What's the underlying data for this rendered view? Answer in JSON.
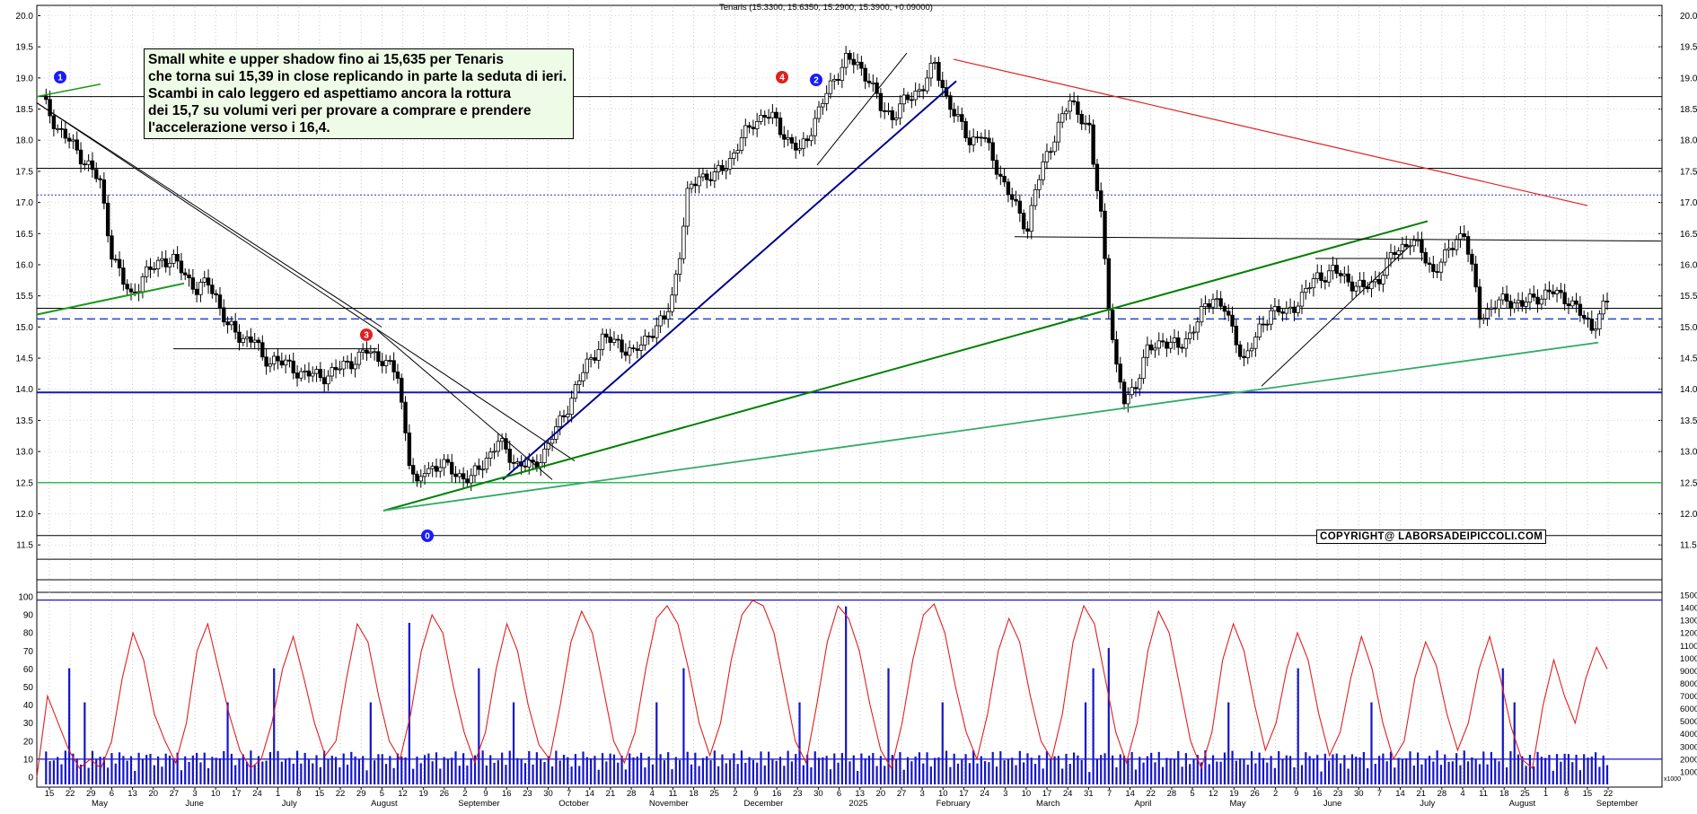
{
  "chart_data": {
    "type": "candlestick",
    "title": "Tenaris (15.3300, 15.6350, 15.2900, 15.3900, +0.09000)",
    "price_axis": {
      "ticks": [
        "20.0",
        "19.5",
        "19.0",
        "18.5",
        "18.0",
        "17.5",
        "17.0",
        "16.5",
        "16.0",
        "15.5",
        "15.0",
        "14.5",
        "14.0",
        "13.5",
        "13.0",
        "12.5",
        "12.0",
        "11.5"
      ],
      "range": [
        11.25,
        20.1
      ]
    },
    "indicator_left_axis": {
      "ticks": [
        "100",
        "90",
        "80",
        "70",
        "60",
        "50",
        "40",
        "30",
        "20",
        "10",
        "0"
      ]
    },
    "volume_axis": {
      "ticks": [
        "15000",
        "14000",
        "13000",
        "12000",
        "11000",
        "10000",
        "9000",
        "8000",
        "7000",
        "6000",
        "5000",
        "4000",
        "3000",
        "2000",
        "1000"
      ],
      "multiplier_label": "x1000"
    },
    "x_axis": {
      "day_ticks": [
        "15",
        "22",
        "29",
        "6",
        "13",
        "20",
        "27",
        "3",
        "10",
        "17",
        "24",
        "1",
        "8",
        "15",
        "22",
        "29",
        "5",
        "12",
        "19",
        "26",
        "2",
        "9",
        "16",
        "23",
        "30",
        "7",
        "14",
        "21",
        "28",
        "4",
        "11",
        "18",
        "25",
        "2",
        "9",
        "16",
        "23",
        "30",
        "6",
        "13",
        "20",
        "27",
        "3",
        "10",
        "17",
        "24",
        "3",
        "10",
        "17",
        "24",
        "31",
        "7",
        "14",
        "22",
        "28",
        "5",
        "12",
        "19",
        "26",
        "2",
        "9",
        "16",
        "23",
        "30",
        "7",
        "14",
        "21",
        "28",
        "4",
        "11",
        "18",
        "25",
        "1",
        "8",
        "15",
        "22"
      ],
      "month_labels": [
        "May",
        "June",
        "July",
        "August",
        "September",
        "October",
        "November",
        "December",
        "2025",
        "February",
        "March",
        "April",
        "May",
        "June",
        "July",
        "August",
        "September"
      ]
    },
    "horizontal_levels": [
      18.7,
      17.55,
      17.12,
      15.3,
      15.13,
      13.95,
      12.5,
      11.65,
      11.27
    ],
    "annotations": [
      {
        "label": "1",
        "color": "#1a1aff"
      },
      {
        "label": "2",
        "color": "#1a1aff"
      },
      {
        "label": "3",
        "color": "#e02020"
      },
      {
        "label": "4",
        "color": "#e02020"
      },
      {
        "label": "0",
        "color": "#1a1aff"
      }
    ],
    "note_lines": [
      "Small white e upper shadow fino ai 15,635 per Tenaris",
      "che torna sui 15,39 in close replicando in parte la seduta di ieri.",
      "Scambi in calo leggero ed aspettiamo ancora la rottura",
      "dei 15,7 su volumi veri per provare a comprare e prendere",
      "l'accelerazione verso i 16,4."
    ],
    "copyright": "COPYRIGHT@ LABORSADEIPICCOLI.COM",
    "price_path": [
      [
        0,
        18.65
      ],
      [
        4,
        18.2
      ],
      [
        8,
        17.9
      ],
      [
        12,
        17.6
      ],
      [
        15,
        17.3
      ],
      [
        18,
        16.2
      ],
      [
        21,
        15.7
      ],
      [
        23,
        15.5
      ],
      [
        26,
        15.8
      ],
      [
        28,
        15.9
      ],
      [
        31,
        16.1
      ],
      [
        34,
        16.05
      ],
      [
        37,
        15.85
      ],
      [
        40,
        15.6
      ],
      [
        43,
        15.7
      ],
      [
        45,
        15.5
      ],
      [
        48,
        15.0
      ],
      [
        51,
        14.85
      ],
      [
        55,
        14.8
      ],
      [
        57,
        14.45
      ],
      [
        60,
        14.5
      ],
      [
        64,
        14.35
      ],
      [
        68,
        14.25
      ],
      [
        72,
        14.2
      ],
      [
        76,
        14.3
      ],
      [
        80,
        14.45
      ],
      [
        84,
        14.6
      ],
      [
        88,
        14.5
      ],
      [
        92,
        14.2
      ],
      [
        93,
        13.75
      ],
      [
        95,
        12.9
      ],
      [
        97,
        12.4
      ],
      [
        99,
        12.7
      ],
      [
        103,
        12.8
      ],
      [
        107,
        12.65
      ],
      [
        111,
        12.55
      ],
      [
        115,
        12.9
      ],
      [
        118,
        13.15
      ],
      [
        120,
        13.0
      ],
      [
        123,
        12.8
      ],
      [
        127,
        12.75
      ],
      [
        131,
        13.1
      ],
      [
        135,
        13.6
      ],
      [
        138,
        14.0
      ],
      [
        141,
        14.4
      ],
      [
        145,
        14.8
      ],
      [
        149,
        14.75
      ],
      [
        153,
        14.55
      ],
      [
        157,
        14.9
      ],
      [
        161,
        15.1
      ],
      [
        163,
        15.5
      ],
      [
        165,
        16.2
      ],
      [
        167,
        17.1
      ],
      [
        170,
        17.45
      ],
      [
        174,
        17.4
      ],
      [
        178,
        17.7
      ],
      [
        181,
        18.0
      ],
      [
        184,
        18.3
      ],
      [
        187,
        18.4
      ],
      [
        190,
        18.3
      ],
      [
        193,
        18.0
      ],
      [
        196,
        17.8
      ],
      [
        199,
        18.2
      ],
      [
        202,
        18.6
      ],
      [
        205,
        19.0
      ],
      [
        208,
        19.3
      ],
      [
        211,
        19.2
      ],
      [
        214,
        19.0
      ],
      [
        217,
        18.5
      ],
      [
        220,
        18.4
      ],
      [
        223,
        18.6
      ],
      [
        225,
        18.7
      ],
      [
        228,
        18.9
      ],
      [
        231,
        19.2
      ],
      [
        234,
        18.7
      ],
      [
        237,
        18.3
      ],
      [
        240,
        18.0
      ],
      [
        243,
        18.1
      ],
      [
        246,
        17.7
      ],
      [
        249,
        17.3
      ],
      [
        252,
        16.9
      ],
      [
        255,
        16.6
      ],
      [
        257,
        17.2
      ],
      [
        260,
        17.75
      ],
      [
        263,
        18.25
      ],
      [
        266,
        18.6
      ],
      [
        269,
        18.4
      ],
      [
        271,
        18.15
      ],
      [
        272,
        17.6
      ],
      [
        274,
        16.8
      ],
      [
        276,
        15.4
      ],
      [
        278,
        14.3
      ],
      [
        280,
        13.8
      ],
      [
        283,
        14.1
      ],
      [
        286,
        14.6
      ],
      [
        290,
        14.8
      ],
      [
        294,
        14.65
      ],
      [
        297,
        14.9
      ],
      [
        300,
        15.2
      ],
      [
        303,
        15.5
      ],
      [
        306,
        15.3
      ],
      [
        308,
        14.9
      ],
      [
        311,
        14.5
      ],
      [
        314,
        14.8
      ],
      [
        318,
        15.3
      ],
      [
        322,
        15.2
      ],
      [
        326,
        15.5
      ],
      [
        330,
        15.8
      ],
      [
        334,
        15.9
      ],
      [
        338,
        15.75
      ],
      [
        342,
        15.6
      ],
      [
        346,
        15.8
      ],
      [
        350,
        16.2
      ],
      [
        354,
        16.4
      ],
      [
        357,
        16.2
      ],
      [
        360,
        15.9
      ],
      [
        363,
        16.1
      ],
      [
        366,
        16.45
      ],
      [
        368,
        16.5
      ],
      [
        370,
        15.9
      ],
      [
        372,
        15.2
      ],
      [
        375,
        15.3
      ],
      [
        379,
        15.45
      ],
      [
        383,
        15.35
      ],
      [
        387,
        15.5
      ],
      [
        391,
        15.55
      ],
      [
        395,
        15.45
      ],
      [
        398,
        15.2
      ],
      [
        401,
        15.0
      ],
      [
        404,
        15.3
      ],
      [
        405,
        15.39
      ]
    ]
  },
  "indicator_path": [
    0,
    45,
    30,
    15,
    5,
    10,
    5,
    20,
    55,
    80,
    65,
    35,
    20,
    8,
    30,
    70,
    85,
    60,
    35,
    15,
    5,
    10,
    30,
    60,
    78,
    55,
    30,
    12,
    20,
    55,
    85,
    75,
    45,
    20,
    10,
    35,
    70,
    90,
    80,
    50,
    25,
    8,
    25,
    60,
    85,
    70,
    40,
    18,
    10,
    40,
    75,
    92,
    80,
    50,
    20,
    8,
    25,
    60,
    88,
    95,
    85,
    60,
    30,
    12,
    30,
    65,
    90,
    98,
    95,
    80,
    50,
    20,
    8,
    40,
    75,
    95,
    88,
    70,
    40,
    15,
    5,
    30,
    65,
    90,
    96,
    80,
    50,
    25,
    10,
    35,
    70,
    88,
    75,
    45,
    20,
    10,
    35,
    75,
    95,
    85,
    55,
    25,
    8,
    30,
    70,
    92,
    80,
    50,
    20,
    5,
    25,
    65,
    85,
    70,
    40,
    15,
    30,
    60,
    80,
    65,
    35,
    12,
    25,
    55,
    78,
    60,
    30,
    10,
    20,
    55,
    75,
    62,
    35,
    15,
    30,
    60,
    78,
    55,
    28,
    10,
    5,
    40,
    65,
    45,
    30,
    55,
    72,
    60
  ]
}
